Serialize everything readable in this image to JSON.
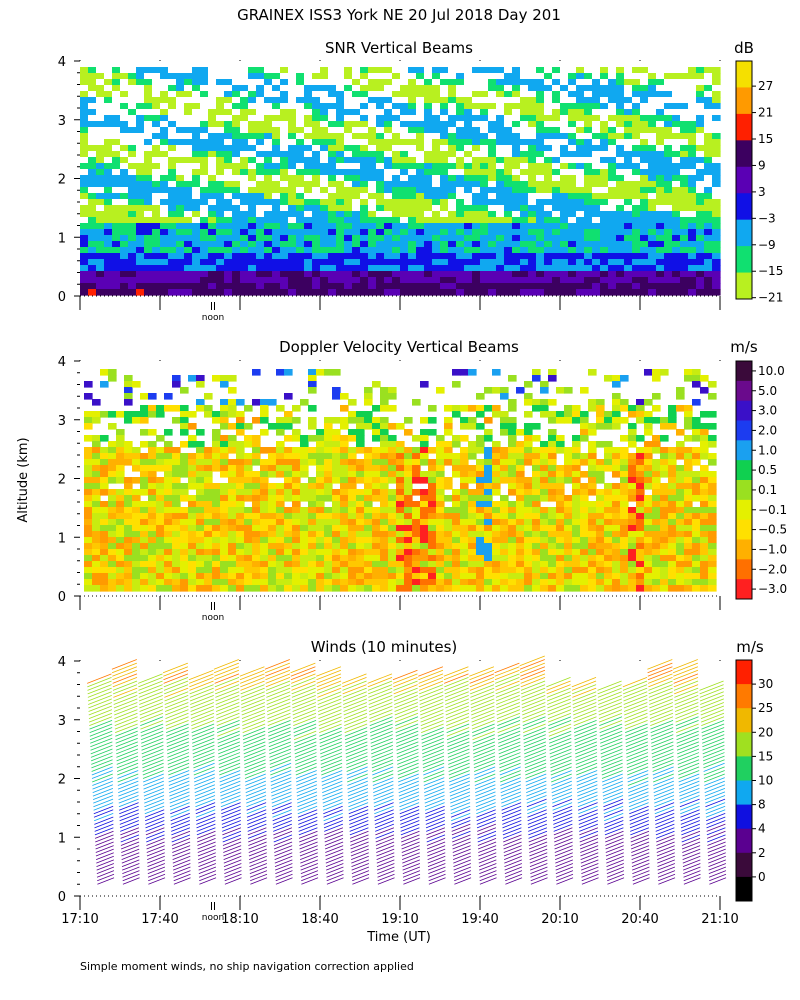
{
  "header": {
    "title": "GRAINEX ISS3 York NE  20 Jul 2018 Day 201",
    "footnote": "Simple moment winds, no ship navigation correction applied"
  },
  "chart_data": [
    {
      "type": "heatmap",
      "title": "SNR Vertical Beams",
      "unit": "dB",
      "ylabel": "",
      "ylim": [
        0,
        4
      ],
      "yticks": [
        "0",
        "1",
        "2",
        "3",
        "4"
      ],
      "marker_label": "noon",
      "colorbar_ticks": [
        "27",
        "21",
        "15",
        "9",
        "3",
        "−3",
        "−9",
        "−15",
        "−21"
      ],
      "colorbar_colors": [
        "#f5e000",
        "#ff9a00",
        "#ff2000",
        "#3c0060",
        "#5a00b4",
        "#1010e6",
        "#10a8f0",
        "#10e070",
        "#b8f020"
      ]
    },
    {
      "type": "heatmap",
      "title": "Doppler Velocity Vertical Beams",
      "unit": "m/s",
      "ylabel": "Altitude (km)",
      "ylim": [
        0,
        4
      ],
      "yticks": [
        "0",
        "1",
        "2",
        "3",
        "4"
      ],
      "marker_label": "noon",
      "colorbar_ticks": [
        "10.0",
        "5.0",
        "3.0",
        "2.0",
        "1.0",
        "0.5",
        "0.1",
        "−0.1",
        "−0.5",
        "−1.0",
        "−2.0",
        "−3.0"
      ],
      "colorbar_colors": [
        "#3a0a3a",
        "#6a0a8c",
        "#3a10c8",
        "#1c3cf0",
        "#1aa0f0",
        "#10d050",
        "#9ae020",
        "#e4f000",
        "#ffe000",
        "#ffb000",
        "#ff7000",
        "#ff2020"
      ]
    },
    {
      "type": "scatter",
      "title": "Winds (10 minutes)",
      "unit": "m/s",
      "ylabel": "",
      "ylim": [
        0,
        4
      ],
      "yticks": [
        "0",
        "1",
        "2",
        "3",
        "4"
      ],
      "marker_label": "noon",
      "xlabel": "Time (UT)",
      "xticks": [
        "17:10",
        "17:40",
        "18:10",
        "18:40",
        "19:10",
        "19:40",
        "20:10",
        "20:40",
        "21:10"
      ],
      "colorbar_ticks": [
        "30",
        "25",
        "20",
        "15",
        "10",
        "8",
        "4",
        "2",
        "0"
      ],
      "colorbar_colors": [
        "#ff2000",
        "#ff7a00",
        "#f0b800",
        "#a0e020",
        "#20d060",
        "#10a8f0",
        "#1010e0",
        "#5a0090",
        "#3a0a3a",
        "#000000"
      ]
    }
  ]
}
